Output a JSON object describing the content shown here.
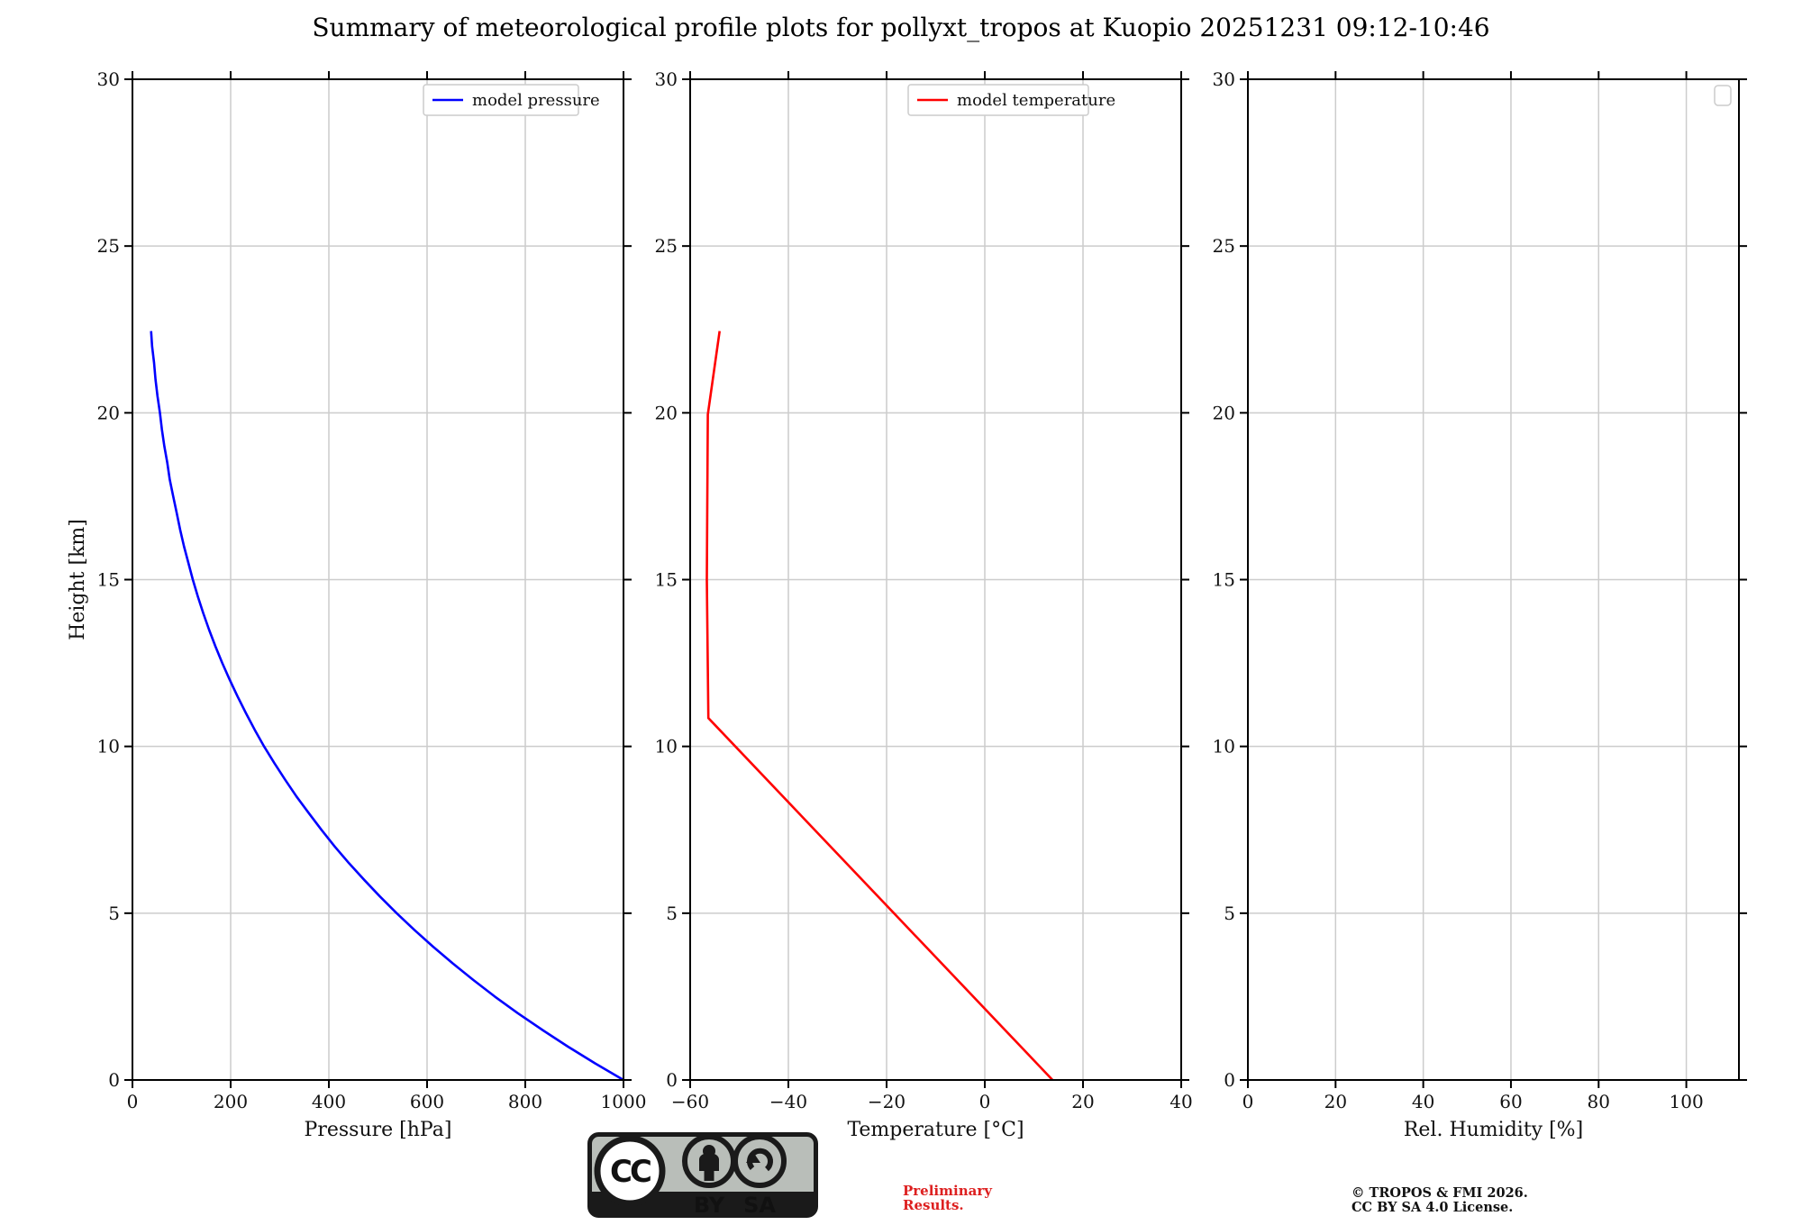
{
  "page": {
    "title": "Summary of meteorological profile plots for pollyxt_tropos at Kuopio 20251231 09:12-10:46"
  },
  "colors": {
    "pressure_line": "#0000ff",
    "temperature_line": "#ff0000",
    "grid": "#cccccc",
    "spine": "#000000",
    "preliminary_text": "#dd2020",
    "legend_border": "#cccccc",
    "badge_gray": "#b9beb9",
    "badge_black": "#1a1a1a"
  },
  "chart_data": [
    {
      "type": "line",
      "xlabel": "Pressure [hPa]",
      "ylabel": "Height [km]",
      "xlim": [
        0,
        1000
      ],
      "ylim": [
        0,
        30
      ],
      "xticks": [
        0,
        200,
        400,
        600,
        800,
        1000
      ],
      "xtick_labels": [
        "0",
        "200",
        "400",
        "600",
        "800",
        "1000"
      ],
      "yticks": [
        0,
        5,
        10,
        15,
        20,
        25,
        30
      ],
      "ytick_labels": [
        "0",
        "5",
        "10",
        "15",
        "20",
        "25",
        "30"
      ],
      "grid": true,
      "legend_position": "upper right",
      "legend": [
        {
          "label": "model pressure",
          "color": "#0000ff"
        }
      ],
      "series": [
        {
          "name": "model pressure",
          "color": "#0000ff",
          "x_unit": "hPa",
          "y_unit": "km",
          "x": [
            1000,
            942,
            887,
            835,
            785,
            738,
            694,
            652,
            612,
            574,
            538,
            504,
            472,
            441,
            412,
            385,
            359,
            334,
            311,
            289,
            268,
            249,
            231,
            214,
            198,
            183,
            169,
            156,
            144,
            133,
            123,
            114,
            105,
            97,
            90,
            83,
            76,
            71,
            65,
            60,
            56,
            51,
            47,
            44,
            40,
            38
          ],
          "y": [
            0,
            0.5,
            1,
            1.5,
            2,
            2.5,
            3,
            3.5,
            4,
            4.5,
            5,
            5.5,
            6,
            6.5,
            7,
            7.5,
            8,
            8.5,
            9,
            9.5,
            10,
            10.5,
            11,
            11.5,
            12,
            12.5,
            13,
            13.5,
            14,
            14.5,
            15,
            15.5,
            16,
            16.5,
            17,
            17.5,
            18,
            18.5,
            19,
            19.5,
            20,
            20.5,
            21,
            21.5,
            22,
            22.45
          ]
        }
      ]
    },
    {
      "type": "line",
      "xlabel": "Temperature [°C]",
      "ylabel": "",
      "xlim": [
        -60,
        40
      ],
      "ylim": [
        0,
        30
      ],
      "xticks": [
        -60,
        -40,
        -20,
        0,
        20,
        40
      ],
      "xtick_labels": [
        "−60",
        "−40",
        "−20",
        "0",
        "20",
        "40"
      ],
      "yticks": [
        0,
        5,
        10,
        15,
        20,
        25,
        30
      ],
      "ytick_labels": [
        "0",
        "5",
        "10",
        "15",
        "20",
        "25",
        "30"
      ],
      "grid": true,
      "legend_position": "upper right",
      "legend": [
        {
          "label": "model temperature",
          "color": "#ff0000"
        }
      ],
      "series": [
        {
          "name": "model temperature",
          "color": "#ff0000",
          "x_unit": "°C",
          "y_unit": "km",
          "x": [
            13.8,
            -56.3,
            -56.6,
            -56.4,
            -54.0
          ],
          "y": [
            0,
            10.85,
            15.0,
            19.95,
            22.45
          ]
        }
      ]
    },
    {
      "type": "line",
      "xlabel": "Rel. Humidity [%]",
      "ylabel": "",
      "xlim": [
        0,
        112
      ],
      "ylim": [
        0,
        30
      ],
      "xticks": [
        0,
        20,
        40,
        60,
        80,
        100
      ],
      "xtick_labels": [
        "0",
        "20",
        "40",
        "60",
        "80",
        "100"
      ],
      "yticks": [
        0,
        5,
        10,
        15,
        20,
        25,
        30
      ],
      "ytick_labels": [
        "0",
        "5",
        "10",
        "15",
        "20",
        "25",
        "30"
      ],
      "grid": true,
      "legend_position": "upper right",
      "legend": [],
      "empty_legend_box": true,
      "series": []
    }
  ],
  "footer": {
    "cc_badge": {
      "cc": "CC",
      "by": "BY",
      "sa": "SA"
    },
    "preliminary": "Preliminary\nResults.",
    "copyright": "© TROPOS & FMI 2026.\nCC BY SA 4.0 License."
  }
}
